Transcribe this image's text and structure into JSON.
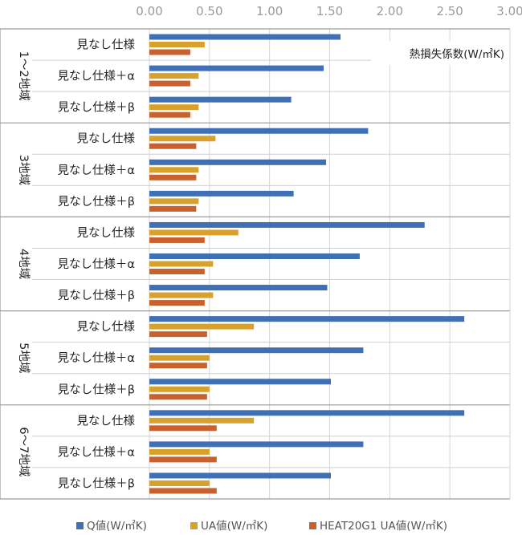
{
  "chart_data": {
    "type": "bar",
    "orientation": "horizontal",
    "unit_label": "熱損失係数(W/㎡K)",
    "xlim": [
      0,
      3
    ],
    "xticks": [
      "0.00",
      "0.50",
      "1.00",
      "1.50",
      "2.00",
      "2.50",
      "3.00"
    ],
    "grid": true,
    "legend_position": "bottom",
    "groups": [
      {
        "label": "1～2地域",
        "categories": [
          "見なし仕様",
          "見なし仕様＋α",
          "見なし仕様＋β"
        ]
      },
      {
        "label": "3地域",
        "categories": [
          "見なし仕様",
          "見なし仕様＋α",
          "見なし仕様＋β"
        ]
      },
      {
        "label": "4地域",
        "categories": [
          "見なし仕様",
          "見なし仕様＋α",
          "見なし仕様＋β"
        ]
      },
      {
        "label": "5地域",
        "categories": [
          "見なし仕様",
          "見なし仕様＋α",
          "見なし仕様＋β"
        ]
      },
      {
        "label": "6～7地域",
        "categories": [
          "見なし仕様",
          "見なし仕様＋α",
          "見なし仕様＋β"
        ]
      }
    ],
    "series": [
      {
        "name": "Q値(W/㎡K)",
        "color": "#3f6fb5",
        "values": [
          1.59,
          1.45,
          1.18,
          1.82,
          1.47,
          1.2,
          2.29,
          1.75,
          1.48,
          2.62,
          1.78,
          1.51,
          2.62,
          1.78,
          1.51
        ]
      },
      {
        "name": "UA値(W/㎡K)",
        "color": "#d8a12c",
        "values": [
          0.46,
          0.41,
          0.41,
          0.55,
          0.41,
          0.41,
          0.74,
          0.53,
          0.53,
          0.87,
          0.5,
          0.5,
          0.87,
          0.5,
          0.5
        ]
      },
      {
        "name": "HEAT20G1 UA値(W/㎡K)",
        "color": "#c9612f",
        "values": [
          0.34,
          0.34,
          0.34,
          0.39,
          0.39,
          0.39,
          0.46,
          0.46,
          0.46,
          0.48,
          0.48,
          0.48,
          0.56,
          0.56,
          0.56
        ]
      }
    ]
  }
}
